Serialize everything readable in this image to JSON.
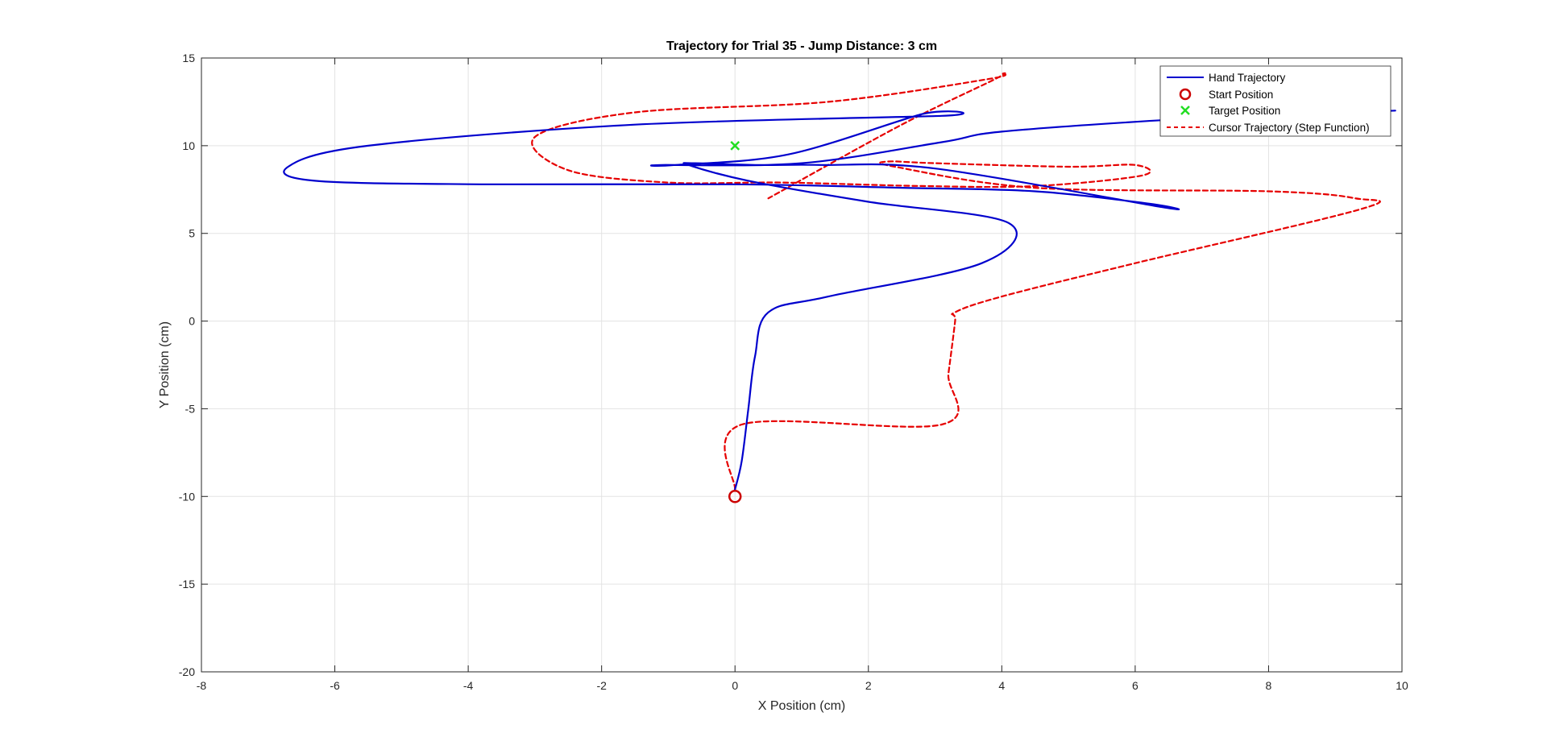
{
  "chart_data": {
    "type": "line",
    "title": "Trajectory for Trial 35 - Jump Distance: 3 cm",
    "xlabel": "X Position (cm)",
    "ylabel": "Y Position (cm)",
    "xlim": [
      -8,
      10
    ],
    "ylim": [
      -20,
      15
    ],
    "xticks": [
      -8,
      -6,
      -4,
      -2,
      0,
      2,
      4,
      6,
      8,
      10
    ],
    "yticks": [
      -20,
      -15,
      -10,
      -5,
      0,
      5,
      10,
      15
    ],
    "grid": true,
    "legend_location": "top-right",
    "series": [
      {
        "name": "Hand Trajectory",
        "style": "solid",
        "color": "#0000CD",
        "x": [
          0,
          0.1,
          0.2,
          0.3,
          0.5,
          1.4,
          3.7,
          4.1,
          2.0,
          0.2,
          -0.7,
          -0.6,
          0.3,
          1.3,
          3.0,
          6.4,
          6.2,
          4.5,
          2.5,
          0.0,
          -3.8,
          -6.3,
          -6.7,
          -5.5,
          -1.5,
          3.1,
          2.8,
          0.8,
          -0.9,
          -1.1,
          1.0,
          3.1,
          4.0,
          6.6,
          8.0,
          9.9
        ],
        "y": [
          -9.6,
          -8.0,
          -5.0,
          -2.0,
          0.5,
          1.4,
          3.3,
          5.6,
          6.8,
          8.0,
          8.9,
          9.0,
          8.9,
          8.9,
          8.7,
          6.5,
          6.7,
          7.4,
          7.6,
          7.8,
          7.8,
          8.0,
          8.8,
          10.0,
          11.2,
          11.7,
          11.8,
          9.5,
          8.9,
          8.9,
          9.0,
          10.2,
          10.8,
          11.5,
          11.7,
          12.0
        ],
        "legend_only": false
      },
      {
        "name": "Start Position",
        "marker": "circle",
        "color": "#CC0000",
        "x": [
          0
        ],
        "y": [
          -10
        ]
      },
      {
        "name": "Target Position",
        "marker": "x",
        "color": "#22DD22",
        "x": [
          0
        ],
        "y": [
          10
        ]
      },
      {
        "name": "Cursor Trajectory (Step Function)",
        "style": "dashed",
        "color": "#E60000",
        "x": [
          0,
          0.1,
          3.1,
          3.2,
          3.3,
          3.3,
          4.0,
          6.0,
          9.4,
          9.3,
          8.0,
          4.5,
          2.4,
          2.3,
          3.0,
          5.0,
          6.0,
          6.1,
          4.5,
          2.8,
          0.7,
          -1.0,
          -2.5,
          -3.0,
          -1.5,
          1.4,
          3.8,
          4.0,
          3.9,
          2.5,
          0.5
        ],
        "y": [
          -9.6,
          -5.9,
          -5.9,
          -3.0,
          0.0,
          0.5,
          1.4,
          3.3,
          6.4,
          7.0,
          7.4,
          7.6,
          8.8,
          9.1,
          9.0,
          8.8,
          8.9,
          8.3,
          7.7,
          7.7,
          7.9,
          7.9,
          8.6,
          10.5,
          11.9,
          12.5,
          13.8,
          14.1,
          13.8,
          11.2,
          7.0
        ],
        "legend_only": false
      }
    ]
  }
}
